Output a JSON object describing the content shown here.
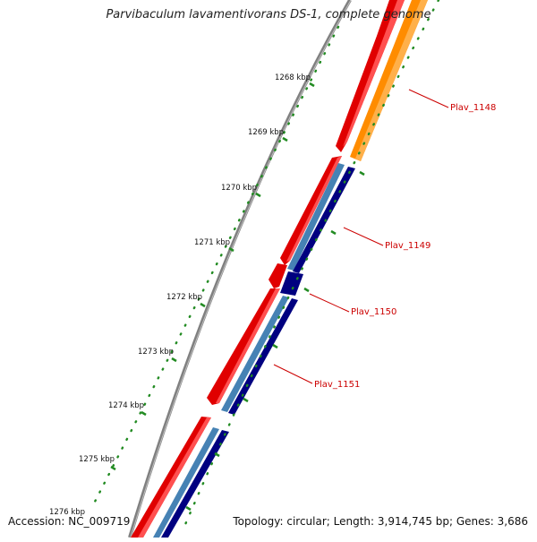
{
  "title": "Parvibaculum lavamentivorans DS-1, complete genome",
  "accession": "Accession: NC_009719",
  "summary": "Topology: circular; Length: 3,914,745 bp; Genes: 3,686",
  "ticks": [
    {
      "label": "1268 kbp"
    },
    {
      "label": "1269 kbp"
    },
    {
      "label": "1270 kbp"
    },
    {
      "label": "1271 kbp"
    },
    {
      "label": "1272 kbp"
    },
    {
      "label": "1273 kbp"
    },
    {
      "label": "1274 kbp"
    },
    {
      "label": "1275 kbp"
    },
    {
      "label": "1276 kbp"
    }
  ],
  "genes": [
    {
      "label": "Plav_1148",
      "color": "#ff8c00"
    },
    {
      "label": "Plav_1149",
      "color": "#000080"
    },
    {
      "label": "Plav_1150",
      "color": "#000080"
    },
    {
      "label": "Plav_1151",
      "color": "#000080"
    }
  ],
  "colors": {
    "cds": "#ff0000",
    "steel": "#4682b4",
    "navy": "#000080",
    "orange": "#ff8c00",
    "backbone": "#808080",
    "ticks": "#228b22",
    "label": "#cc0000"
  }
}
